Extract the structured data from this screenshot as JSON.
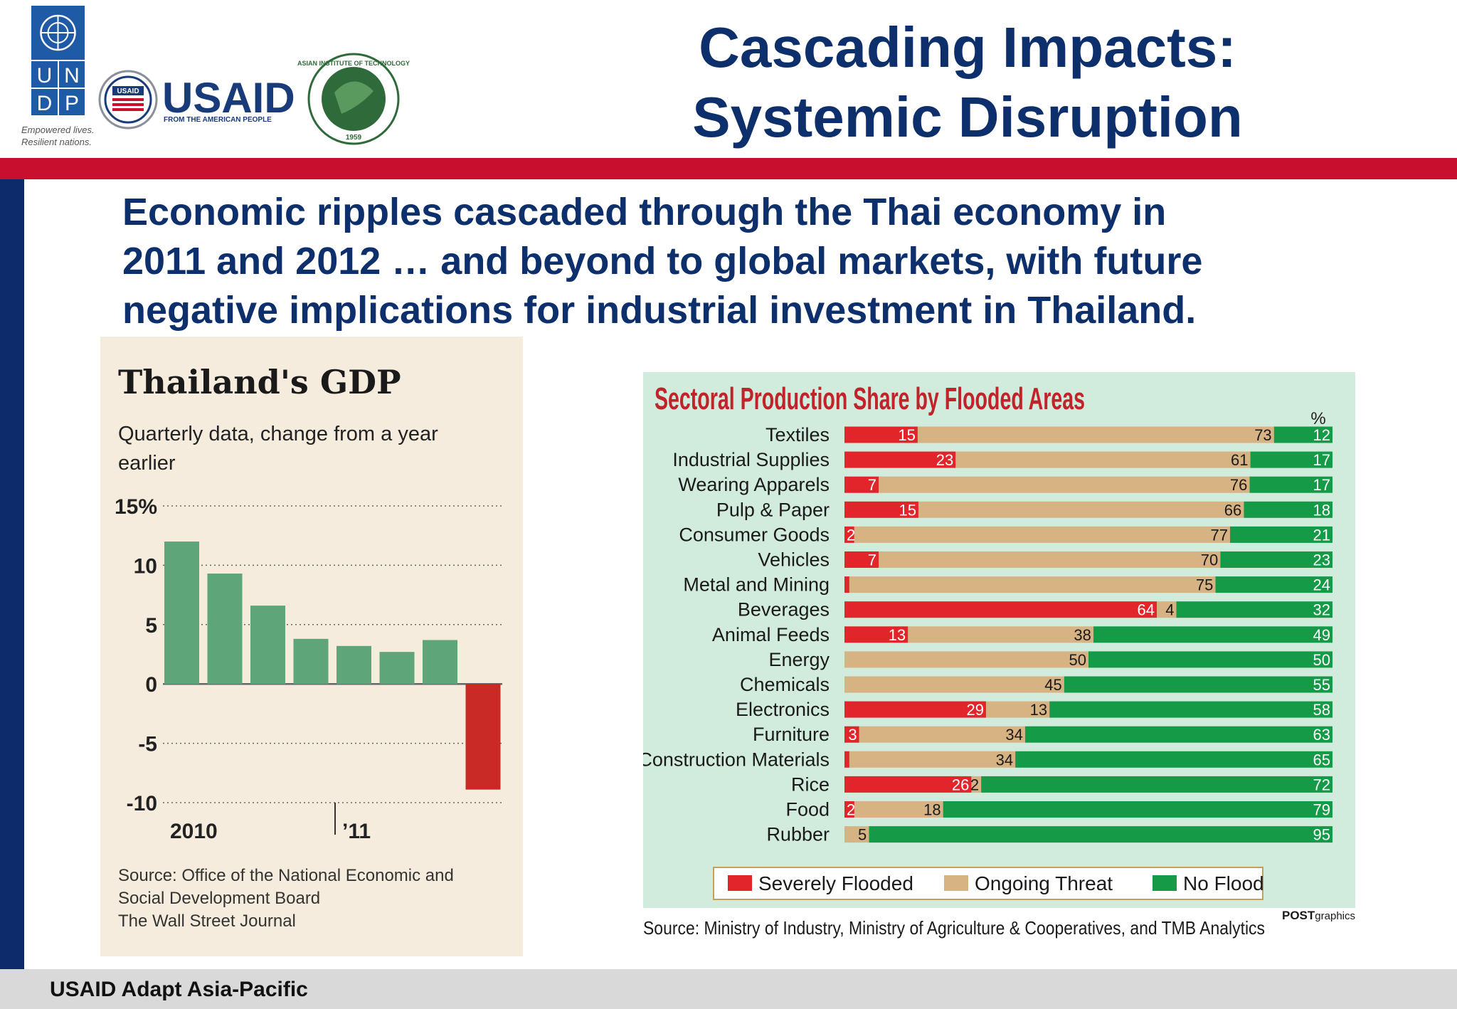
{
  "header": {
    "title_line1": "Cascading Impacts:",
    "title_line2": "Systemic Disruption"
  },
  "logos": {
    "undp_letters": [
      "U",
      "N",
      "D",
      "P"
    ],
    "undp_tagline_line1": "Empowered lives.",
    "undp_tagline_line2": "Resilient nations.",
    "usaid_name": "USAID",
    "usaid_tagline": "FROM THE AMERICAN PEOPLE",
    "usaid_seal_text": "USAID",
    "ait_seal_text": "ASIAN INSTITUTE OF TECHNOLOGY",
    "ait_year": "1959"
  },
  "subtitle": {
    "line1": "Economic ripples cascaded through the Thai economy in",
    "line2": "2011 and 2012 … and beyond to global markets, with future",
    "line3": "negative implications for industrial investment in Thailand."
  },
  "footer": {
    "text": "USAID Adapt Asia-Pacific"
  },
  "colors": {
    "navy": "#0d2f6b",
    "red_band": "#c8102e",
    "gdp_bar": "#5fa57a",
    "gdp_negative": "#c92a26",
    "severely_flooded": "#e2252b",
    "ongoing_threat": "#d7b283",
    "no_flood": "#159a47",
    "sector_title": "#c0232a"
  },
  "chart_data": [
    {
      "type": "bar",
      "title": "Thailand's GDP",
      "subtitle_line1": "Quarterly data, change from a year",
      "subtitle_line2": "earlier",
      "values": [
        12,
        9.3,
        6.6,
        3.8,
        3.2,
        2.7,
        3.7,
        -8.9
      ],
      "y_ticks": [
        "15%",
        "10",
        "5",
        "0",
        "-5",
        "-10"
      ],
      "ylim": [
        -10,
        15
      ],
      "x_labels": [
        "2010",
        "’11"
      ],
      "grid": "dotted",
      "source_line1": "Source: Office of the National Economic and",
      "source_line2": "Social Development Board",
      "source_line3": "The Wall Street Journal"
    },
    {
      "type": "bar",
      "orientation": "horizontal",
      "stacked": true,
      "title": "Sectoral Production Share by Flooded Areas",
      "unit": "%",
      "legend_position": "bottom",
      "series_names": [
        "Severely Flooded",
        "Ongoing Threat",
        "No Flood"
      ],
      "categories": [
        "Textiles",
        "Industrial Supplies",
        "Wearing Apparels",
        "Pulp & Paper",
        "Consumer Goods",
        "Vehicles",
        "Metal and Mining",
        "Beverages",
        "Animal Feeds",
        "Energy",
        "Chemicals",
        "Electronics",
        "Furniture",
        "Construction Materials",
        "Rice",
        "Food",
        "Rubber"
      ],
      "severely_flooded": [
        15,
        23,
        7,
        15,
        2,
        7,
        1,
        64,
        13,
        0,
        0,
        29,
        3,
        1,
        26,
        2,
        0
      ],
      "ongoing_threat": [
        73,
        61,
        76,
        66,
        77,
        70,
        75,
        4,
        38,
        50,
        45,
        13,
        34,
        34,
        2,
        18,
        5
      ],
      "no_flood": [
        12,
        17,
        17,
        18,
        21,
        23,
        24,
        32,
        49,
        50,
        55,
        58,
        63,
        65,
        72,
        79,
        95
      ],
      "severely_flooded_labels": [
        "15",
        "23",
        "7",
        "15",
        "2",
        "7",
        "",
        "64",
        "13",
        "",
        "",
        "29",
        "3",
        "",
        "26",
        "2",
        ""
      ],
      "ongoing_threat_labels": [
        "73",
        "61",
        "76",
        "66",
        "77",
        "70",
        "75",
        "4",
        "38",
        "50",
        "45",
        "13",
        "34",
        "34",
        "2",
        "18",
        "5"
      ],
      "no_flood_labels": [
        "12",
        "17",
        "17",
        "18",
        "21",
        "23",
        "24",
        "32",
        "49",
        "50",
        "55",
        "58",
        "63",
        "65",
        "72",
        "79",
        "95"
      ],
      "source": "Source: Ministry of Industry, Ministry of Agriculture & Cooperatives, and TMB Analytics",
      "credit_bold": "POST",
      "credit_rest": "graphics"
    }
  ]
}
